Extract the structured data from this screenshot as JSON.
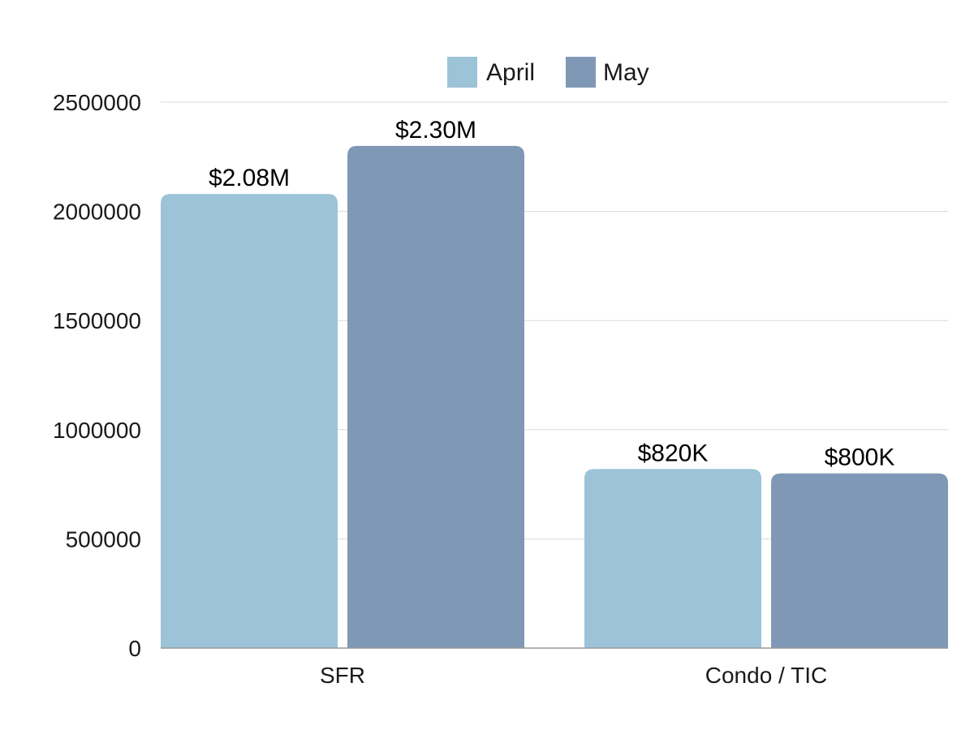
{
  "chart_data": {
    "type": "bar",
    "title": "",
    "xlabel": "",
    "ylabel": "",
    "categories": [
      "SFR",
      "Condo / TIC"
    ],
    "series": [
      {
        "name": "April",
        "color": "#9cc3d8",
        "values": [
          2080000,
          820000
        ],
        "labels": [
          "$2.08M",
          "$820K"
        ]
      },
      {
        "name": "May",
        "color": "#7f98b5",
        "values": [
          2300000,
          800000
        ],
        "labels": [
          "$2.30M",
          "$800K"
        ]
      }
    ],
    "ylim": [
      0,
      2500000
    ],
    "yticks": [
      0,
      500000,
      1000000,
      1500000,
      2000000,
      2500000
    ],
    "ytick_labels": [
      "0",
      "500000",
      "1000000",
      "1500000",
      "2000000",
      "2500000"
    ],
    "grid": true,
    "legend_position": "top-center"
  }
}
